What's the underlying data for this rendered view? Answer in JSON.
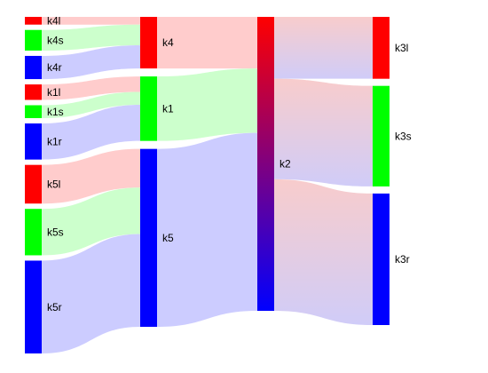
{
  "chart_data": {
    "type": "sankey",
    "columns": [
      [
        "k4l",
        "k4s",
        "k4r",
        "k1l",
        "k1s",
        "k1r",
        "k5l",
        "k5s",
        "k5r"
      ],
      [
        "k4",
        "k1",
        "k5"
      ],
      [
        "k2"
      ],
      [
        "k3l",
        "k3s",
        "k3r"
      ]
    ],
    "nodes": [
      {
        "id": "k4l",
        "label": "k4l",
        "color": "#ff0000"
      },
      {
        "id": "k4s",
        "label": "k4s",
        "color": "#00ff00"
      },
      {
        "id": "k4r",
        "label": "k4r",
        "color": "#0000ff"
      },
      {
        "id": "k1l",
        "label": "k1l",
        "color": "#ff0000"
      },
      {
        "id": "k1s",
        "label": "k1s",
        "color": "#00ff00"
      },
      {
        "id": "k1r",
        "label": "k1r",
        "color": "#0000ff"
      },
      {
        "id": "k5l",
        "label": "k5l",
        "color": "#ff0000"
      },
      {
        "id": "k5s",
        "label": "k5s",
        "color": "#00ff00"
      },
      {
        "id": "k5r",
        "label": "k5r",
        "color": "#0000ff"
      },
      {
        "id": "k4",
        "label": "k4",
        "color": "#ff0000"
      },
      {
        "id": "k1",
        "label": "k1",
        "color": "#00ff00"
      },
      {
        "id": "k5",
        "label": "k5",
        "color": "#0000ff"
      },
      {
        "id": "k2",
        "label": "k2",
        "gradient": [
          "#ff0000",
          "#0000ff"
        ]
      },
      {
        "id": "k3l",
        "label": "k3l",
        "color": "#ff0000"
      },
      {
        "id": "k3s",
        "label": "k3s",
        "color": "#00ff00"
      },
      {
        "id": "k3r",
        "label": "k3r",
        "color": "#0000ff"
      }
    ],
    "links": [
      {
        "source": "k4l",
        "target": "k4",
        "value": 3,
        "color": "#ffcccc"
      },
      {
        "source": "k4s",
        "target": "k4",
        "value": 8,
        "color": "#ccffcc"
      },
      {
        "source": "k4r",
        "target": "k4",
        "value": 9,
        "color": "#ccccff"
      },
      {
        "source": "k1l",
        "target": "k1",
        "value": 6,
        "color": "#ffcccc"
      },
      {
        "source": "k1s",
        "target": "k1",
        "value": 5,
        "color": "#ccffcc"
      },
      {
        "source": "k1r",
        "target": "k1",
        "value": 14,
        "color": "#ccccff"
      },
      {
        "source": "k5l",
        "target": "k5",
        "value": 15,
        "color": "#ffcccc"
      },
      {
        "source": "k5s",
        "target": "k5",
        "value": 18,
        "color": "#ccffcc"
      },
      {
        "source": "k5r",
        "target": "k5",
        "value": 36,
        "color": "#ccccff"
      },
      {
        "source": "k4",
        "target": "k2",
        "value": 20,
        "color": "#ffcccc"
      },
      {
        "source": "k1",
        "target": "k2",
        "value": 25,
        "color": "#ccffcc"
      },
      {
        "source": "k5",
        "target": "k2",
        "value": 69,
        "color": "#ccccff"
      },
      {
        "source": "k2",
        "target": "k3l",
        "value": 24,
        "gradient": [
          "#f8cccc",
          "#d0ccf8"
        ]
      },
      {
        "source": "k2",
        "target": "k3s",
        "value": 39,
        "gradient": [
          "#f8cccc",
          "#d0ccf8"
        ]
      },
      {
        "source": "k2",
        "target": "k3r",
        "value": 51,
        "gradient": [
          "#f8cccc",
          "#d0ccf8"
        ]
      }
    ]
  }
}
